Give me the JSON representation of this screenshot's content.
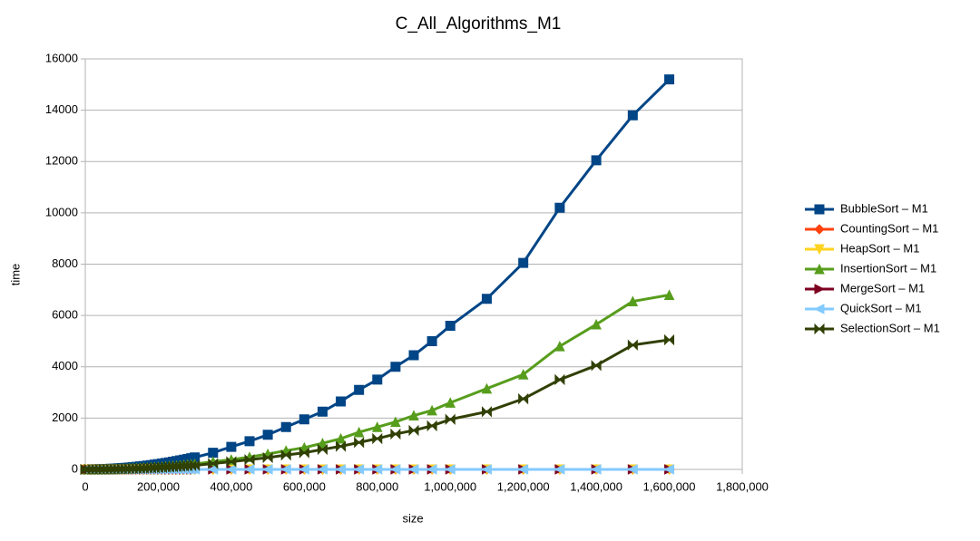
{
  "chart_data": {
    "type": "line",
    "title": "C_All_Algorithms_M1",
    "x_label": "size",
    "y_label": "time",
    "x": [
      0,
      10000,
      20000,
      30000,
      40000,
      50000,
      60000,
      70000,
      80000,
      90000,
      100000,
      110000,
      120000,
      130000,
      140000,
      150000,
      160000,
      170000,
      180000,
      190000,
      200000,
      210000,
      220000,
      230000,
      240000,
      250000,
      260000,
      270000,
      280000,
      290000,
      300000,
      350000,
      400000,
      450000,
      500000,
      550000,
      600000,
      650000,
      700000,
      750000,
      800000,
      850000,
      900000,
      950000,
      1000000,
      1100000,
      1200000,
      1300000,
      1400000,
      1500000,
      1600000
    ],
    "series": [
      {
        "name": "BubbleSort – M1",
        "color": "#004586",
        "marker": "square",
        "values": [
          0,
          1,
          2,
          5,
          8,
          13,
          19,
          25,
          33,
          42,
          52,
          63,
          75,
          88,
          102,
          117,
          133,
          150,
          168,
          188,
          208,
          229,
          252,
          275,
          300,
          325,
          352,
          379,
          408,
          437,
          468,
          650,
          880,
          1100,
          1350,
          1650,
          1950,
          2250,
          2650,
          3100,
          3500,
          4000,
          4450,
          5000,
          5600,
          6650,
          8050,
          10200,
          12050,
          13800,
          15200
        ]
      },
      {
        "name": "CountingSort – M1",
        "color": "#ff420e",
        "marker": "diamond",
        "values": [
          0,
          0,
          0,
          0,
          0,
          0,
          0,
          0,
          0,
          0,
          0,
          0,
          0,
          0,
          0,
          0,
          0,
          0,
          0,
          0,
          0,
          0,
          0,
          0,
          0,
          0,
          0,
          0,
          0,
          0,
          0,
          0,
          0,
          0,
          0,
          0,
          0,
          0,
          0,
          0,
          0,
          0,
          0,
          0,
          0,
          0,
          0,
          0,
          0,
          0,
          0
        ]
      },
      {
        "name": "HeapSort – M1",
        "color": "#ffd320",
        "marker": "triangle-down",
        "values": [
          0,
          0,
          0,
          0,
          0,
          0,
          0,
          0,
          0,
          0,
          0,
          0,
          0,
          0,
          0,
          0,
          0,
          0,
          0,
          0,
          0,
          0,
          0,
          0,
          0,
          0,
          0,
          0,
          0,
          0,
          0,
          0,
          0,
          0,
          0,
          0,
          0,
          0,
          0,
          0,
          0,
          0,
          0,
          0,
          0,
          0,
          0,
          0,
          0,
          0,
          0
        ]
      },
      {
        "name": "InsertionSort – M1",
        "color": "#579d1c",
        "marker": "triangle-up",
        "values": [
          0,
          0,
          1,
          2,
          4,
          6,
          9,
          11,
          15,
          19,
          23,
          28,
          34,
          40,
          46,
          53,
          60,
          68,
          76,
          85,
          94,
          103,
          113,
          124,
          135,
          146,
          158,
          171,
          184,
          197,
          211,
          300,
          380,
          480,
          600,
          730,
          850,
          1020,
          1200,
          1450,
          1650,
          1850,
          2100,
          2300,
          2600,
          3150,
          3700,
          4800,
          5650,
          6550,
          6800
        ]
      },
      {
        "name": "MergeSort – M1",
        "color": "#7e0021",
        "marker": "triangle-right",
        "values": [
          0,
          0,
          0,
          0,
          0,
          0,
          0,
          0,
          0,
          0,
          0,
          0,
          0,
          0,
          0,
          0,
          0,
          0,
          0,
          0,
          0,
          0,
          0,
          0,
          0,
          0,
          0,
          0,
          0,
          0,
          0,
          0,
          0,
          0,
          0,
          0,
          0,
          0,
          0,
          0,
          0,
          0,
          0,
          0,
          0,
          0,
          0,
          0,
          0,
          0,
          0
        ]
      },
      {
        "name": "QuickSort – M1",
        "color": "#83caff",
        "marker": "triangle-left",
        "values": [
          0,
          0,
          0,
          0,
          0,
          0,
          0,
          0,
          0,
          0,
          0,
          0,
          0,
          0,
          0,
          0,
          0,
          0,
          0,
          0,
          0,
          0,
          0,
          0,
          0,
          0,
          0,
          0,
          0,
          0,
          0,
          0,
          0,
          0,
          0,
          0,
          0,
          0,
          0,
          0,
          0,
          0,
          0,
          0,
          0,
          0,
          0,
          0,
          0,
          0,
          0
        ]
      },
      {
        "name": "SelectionSort – M1",
        "color": "#314004",
        "marker": "bowtie",
        "values": [
          0,
          0,
          1,
          2,
          3,
          4,
          6,
          8,
          11,
          14,
          17,
          21,
          25,
          29,
          34,
          39,
          44,
          50,
          55,
          62,
          69,
          76,
          83,
          91,
          99,
          107,
          116,
          125,
          135,
          144,
          154,
          230,
          300,
          380,
          460,
          560,
          650,
          780,
          900,
          1050,
          1200,
          1380,
          1520,
          1700,
          1950,
          2250,
          2750,
          3500,
          4050,
          4850,
          5050
        ]
      }
    ],
    "xlim": [
      0,
      1800000
    ],
    "xticks": [
      0,
      {
        "value": 200000,
        "label": "200,000"
      },
      {
        "value": 400000,
        "label": "400,000"
      },
      {
        "value": 600000,
        "label": "600,000"
      },
      {
        "value": 800000,
        "label": "800,000"
      },
      {
        "value": 1000000,
        "label": "1,000,000"
      },
      {
        "value": 1200000,
        "label": "1,200,000"
      },
      {
        "value": 1400000,
        "label": "1,400,000"
      },
      {
        "value": 1600000,
        "label": "1,600,000"
      },
      {
        "value": 1800000,
        "label": "1,800,000"
      }
    ],
    "ylim": [
      0,
      16000
    ],
    "yticks": [
      0,
      2000,
      4000,
      6000,
      8000,
      10000,
      12000,
      14000,
      16000
    ],
    "grid": true,
    "legend": "right"
  }
}
